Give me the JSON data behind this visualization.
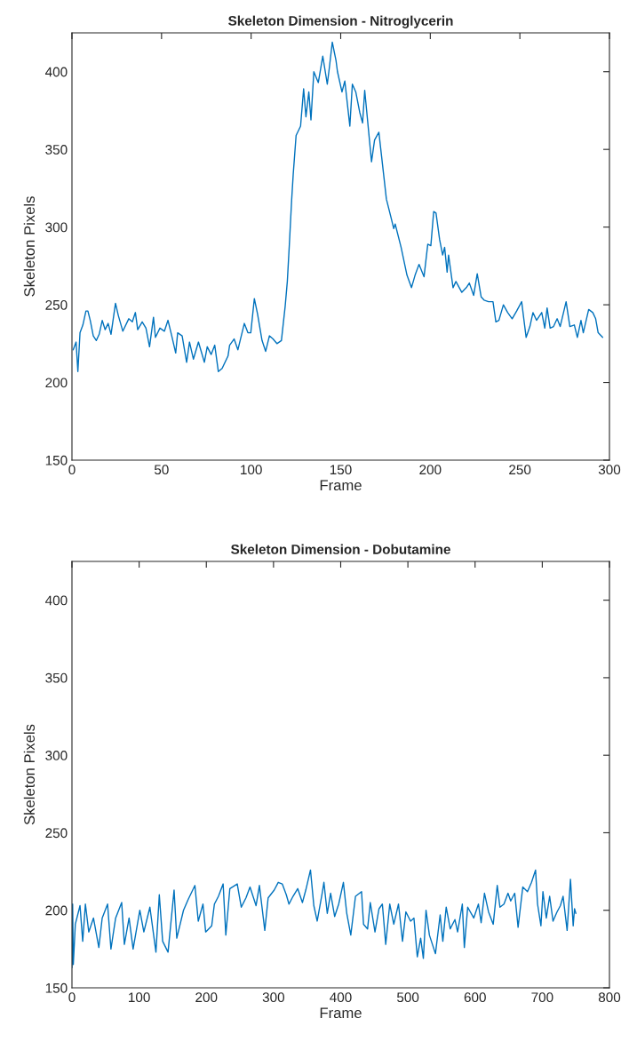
{
  "chart_data": [
    {
      "type": "line",
      "title": "Skeleton Dimension - Nitroglycerin",
      "xlabel": "Frame",
      "ylabel": "Skeleton Pixels",
      "xlim": [
        0,
        300
      ],
      "ylim": [
        150,
        425
      ],
      "xticks": [
        0,
        50,
        100,
        150,
        200,
        250,
        300
      ],
      "yticks": [
        150,
        200,
        250,
        300,
        350,
        400
      ],
      "series": [
        {
          "color": "#0072bd",
          "x": [
            0.7,
            2.3,
            3.3,
            4.5,
            6.1,
            7.8,
            8.9,
            10.2,
            11.9,
            13.6,
            15.2,
            16.9,
            18.5,
            20.2,
            21.8,
            24.3,
            25.9,
            28.4,
            31.7,
            33.7,
            35.4,
            36.7,
            39.2,
            41.3,
            43.3,
            45.5,
            46.6,
            49.1,
            51.6,
            53.6,
            55.7,
            57.9,
            59.0,
            61.5,
            64.0,
            65.6,
            67.8,
            70.6,
            73.9,
            75.5,
            77.7,
            79.7,
            81.7,
            83.8,
            87.1,
            88.0,
            90.5,
            92.6,
            96.2,
            98.2,
            99.8,
            101.8,
            103.6,
            106.1,
            108.1,
            110.2,
            112.2,
            114.4,
            116.9,
            119.0,
            120.2,
            121.3,
            122.6,
            123.5,
            125.1,
            127.6,
            129.3,
            130.6,
            132.2,
            133.4,
            135.0,
            137.5,
            140.0,
            142.5,
            143.6,
            145.3,
            147.4,
            148.2,
            150.7,
            152.3,
            155.1,
            156.5,
            158.4,
            160.6,
            162.2,
            163.4,
            167.2,
            168.9,
            171.3,
            175.5,
            177.9,
            179.6,
            180.4,
            183.7,
            187.0,
            189.5,
            191.5,
            193.7,
            196.5,
            198.6,
            200.3,
            201.9,
            203.2,
            205.2,
            206.9,
            208.0,
            209.4,
            210.2,
            212.7,
            214.3,
            217.6,
            220.1,
            221.8,
            224.2,
            226.2,
            228.4,
            230.0,
            232.5,
            235.0,
            236.6,
            238.3,
            240.8,
            243.2,
            245.7,
            248.2,
            251.0,
            253.5,
            255.6,
            257.3,
            259.3,
            262.2,
            263.9,
            265.2,
            266.9,
            268.8,
            270.8,
            272.5,
            275.8,
            277.9,
            280.4,
            282.1,
            284.1,
            285.4,
            288.4,
            290.7,
            292.3,
            293.7,
            296.2
          ],
          "values": [
            221,
            226,
            207,
            232,
            237,
            246,
            246,
            240,
            230,
            227,
            231,
            240,
            234,
            238,
            231,
            251,
            243,
            233,
            241,
            239,
            245,
            234,
            239,
            235,
            223,
            242,
            229,
            235,
            233,
            240,
            230,
            219,
            232,
            230,
            213,
            226,
            215,
            226,
            213,
            223,
            218,
            224,
            207,
            209,
            217,
            224,
            228,
            221,
            238,
            232,
            232,
            254,
            244,
            227,
            220,
            230,
            228,
            225,
            227,
            249,
            265,
            288,
            317,
            334,
            359,
            365,
            389,
            371,
            387,
            369,
            400,
            393,
            410,
            392,
            402,
            419,
            407,
            400,
            387,
            394,
            365,
            392,
            387,
            374,
            367,
            388,
            342,
            356,
            361,
            318,
            307,
            299,
            302,
            287,
            269,
            261,
            269,
            276,
            268,
            289,
            288,
            310,
            309,
            292,
            282,
            287,
            271,
            282,
            261,
            265,
            258,
            261,
            264,
            256,
            270,
            255,
            253,
            252,
            252,
            239,
            240,
            250,
            245,
            241,
            246,
            252,
            229,
            236,
            245,
            240,
            245,
            235,
            248,
            235,
            236,
            241,
            236,
            252,
            236,
            237,
            229,
            240,
            232,
            247,
            245,
            241,
            232,
            229
          ]
        }
      ]
    },
    {
      "type": "line",
      "title": "Skeleton Dimension - Dobutamine",
      "xlabel": "Frame",
      "ylabel": "Skeleton Pixels",
      "xlim": [
        0,
        800
      ],
      "ylim": [
        150,
        425
      ],
      "xticks": [
        0,
        100,
        200,
        300,
        400,
        500,
        600,
        700,
        800
      ],
      "yticks": [
        150,
        200,
        250,
        300,
        350,
        400
      ],
      "series": [
        {
          "color": "#0072bd",
          "x": [
            0,
            1,
            2,
            5,
            12,
            16,
            20,
            25,
            32,
            40,
            45,
            53,
            58,
            65,
            74,
            78,
            85,
            91,
            101,
            107,
            116,
            125,
            130,
            135,
            143,
            152,
            156,
            166,
            173,
            183,
            188,
            195,
            199,
            208,
            212,
            218,
            225,
            229,
            235,
            246,
            252,
            259,
            265,
            274,
            279,
            287,
            292,
            301,
            307,
            313,
            319,
            323,
            329,
            336,
            343,
            348,
            355,
            360,
            365,
            372,
            375,
            380,
            385,
            391,
            397,
            404,
            409,
            415,
            422,
            431,
            434,
            440,
            444,
            451,
            457,
            462,
            467,
            473,
            479,
            486,
            492,
            497,
            504,
            509,
            514,
            519,
            523,
            527,
            532,
            541,
            548,
            552,
            557,
            563,
            570,
            574,
            581,
            584,
            589,
            598,
            605,
            609,
            614,
            620,
            627,
            633,
            637,
            643,
            649,
            653,
            659,
            664,
            671,
            678,
            684,
            690,
            693,
            698,
            701,
            706,
            711,
            716,
            722,
            727,
            731,
            737,
            742,
            746,
            748,
            750
          ],
          "values": [
            163,
            204,
            165,
            191,
            203,
            180,
            204,
            186,
            195,
            176,
            195,
            204,
            175,
            195,
            205,
            178,
            195,
            175,
            200,
            186,
            202,
            173,
            210,
            180,
            173,
            213,
            182,
            200,
            207,
            216,
            193,
            204,
            186,
            190,
            204,
            209,
            217,
            184,
            214,
            217,
            202,
            208,
            215,
            203,
            216,
            187,
            208,
            213,
            218,
            217,
            210,
            204,
            209,
            214,
            205,
            213,
            226,
            203,
            193,
            210,
            218,
            198,
            211,
            196,
            204,
            218,
            198,
            184,
            209,
            212,
            191,
            188,
            205,
            186,
            201,
            204,
            178,
            204,
            191,
            204,
            180,
            199,
            193,
            195,
            170,
            182,
            169,
            200,
            184,
            172,
            197,
            180,
            202,
            188,
            194,
            186,
            204,
            176,
            202,
            195,
            204,
            192,
            211,
            199,
            191,
            216,
            202,
            204,
            211,
            206,
            211,
            189,
            215,
            212,
            218,
            226,
            204,
            190,
            212,
            195,
            209,
            193,
            199,
            203,
            209,
            187,
            220,
            190,
            201,
            198
          ]
        }
      ]
    }
  ]
}
